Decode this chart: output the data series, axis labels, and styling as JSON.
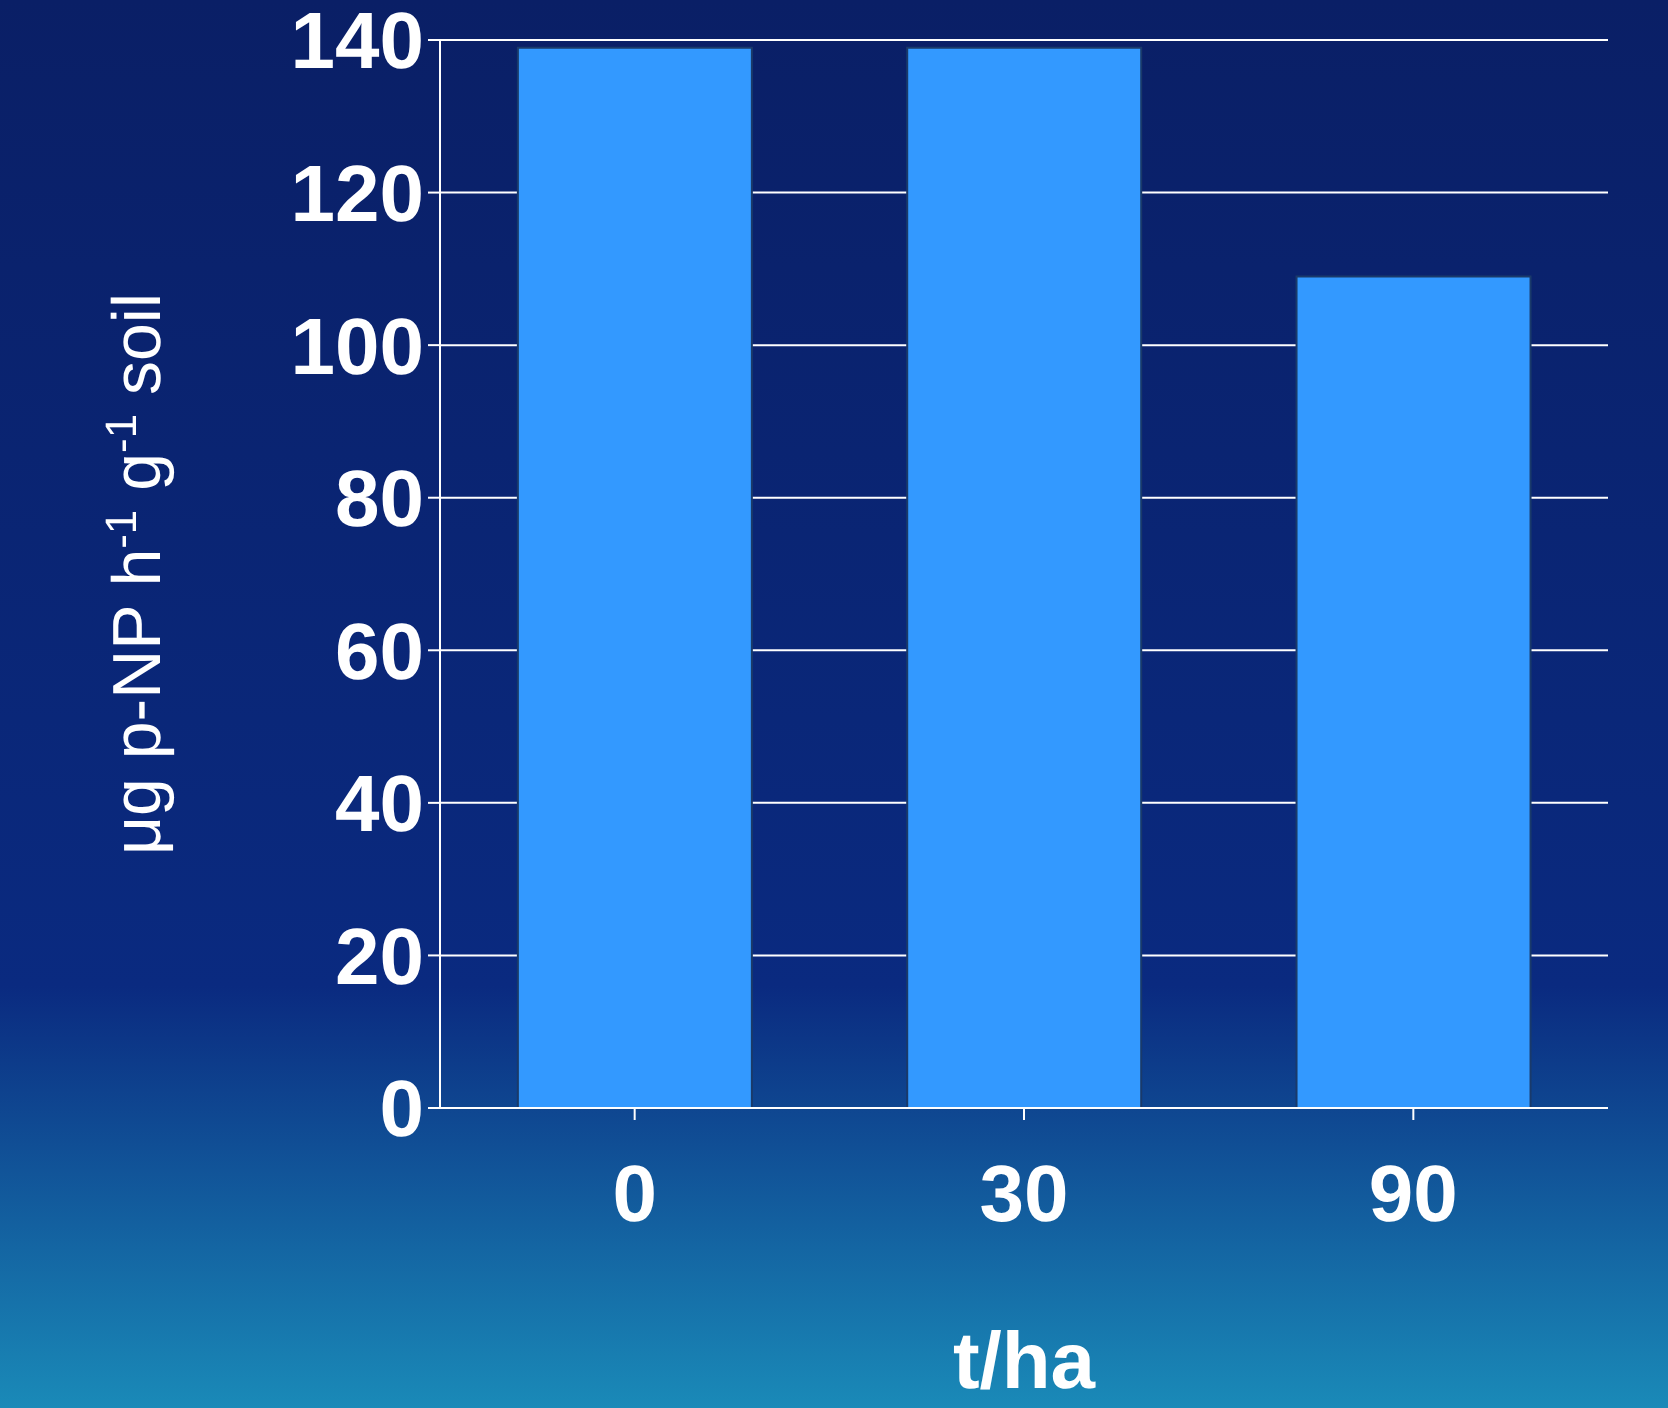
{
  "chart_data": {
    "type": "bar",
    "xlabel": "t/ha",
    "ylabel": "μg p-NP h$^{-1}$ g$^{-1}$ soil",
    "categories": [
      "0",
      "30",
      "90"
    ],
    "values": [
      139,
      139,
      109
    ],
    "color": "#3399ff",
    "ylim": [
      0,
      140
    ],
    "yticks": [
      0,
      20,
      40,
      60,
      80,
      100,
      120,
      140
    ],
    "grid": "y"
  }
}
